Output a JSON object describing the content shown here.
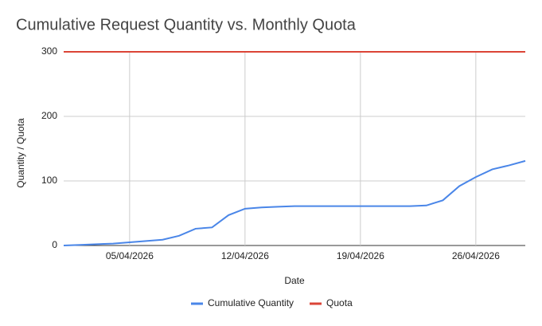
{
  "chart_data": {
    "type": "line",
    "title": "Cumulative Request Quantity vs. Monthly Quota",
    "x_label": "Date",
    "y_label": "Quantity / Quota",
    "x": [
      "01/04/2026",
      "02/04/2026",
      "03/04/2026",
      "04/04/2026",
      "05/04/2026",
      "06/04/2026",
      "07/04/2026",
      "08/04/2026",
      "09/04/2026",
      "10/04/2026",
      "11/04/2026",
      "12/04/2026",
      "13/04/2026",
      "14/04/2026",
      "15/04/2026",
      "16/04/2026",
      "17/04/2026",
      "18/04/2026",
      "19/04/2026",
      "20/04/2026",
      "21/04/2026",
      "22/04/2026",
      "23/04/2026",
      "24/04/2026",
      "25/04/2026",
      "26/04/2026",
      "27/04/2026",
      "28/04/2026",
      "29/04/2026"
    ],
    "xticks": [
      "05/04/2026",
      "12/04/2026",
      "19/04/2026",
      "26/04/2026"
    ],
    "series": [
      {
        "name": "Cumulative Quantity",
        "color": "#4a86e8",
        "values": [
          0,
          1,
          2,
          3,
          5,
          7,
          9,
          15,
          26,
          28,
          47,
          57,
          59,
          60,
          61,
          61,
          61,
          61,
          61,
          61,
          61,
          61,
          62,
          70,
          92,
          106,
          118,
          124,
          131
        ]
      },
      {
        "name": "Quota",
        "color": "#db4437",
        "values": [
          300,
          300,
          300,
          300,
          300,
          300,
          300,
          300,
          300,
          300,
          300,
          300,
          300,
          300,
          300,
          300,
          300,
          300,
          300,
          300,
          300,
          300,
          300,
          300,
          300,
          300,
          300,
          300,
          300
        ]
      }
    ],
    "ylim": [
      0,
      300
    ],
    "yticks": [
      0,
      100,
      200,
      300
    ],
    "grid": true,
    "legend": "bottom"
  }
}
